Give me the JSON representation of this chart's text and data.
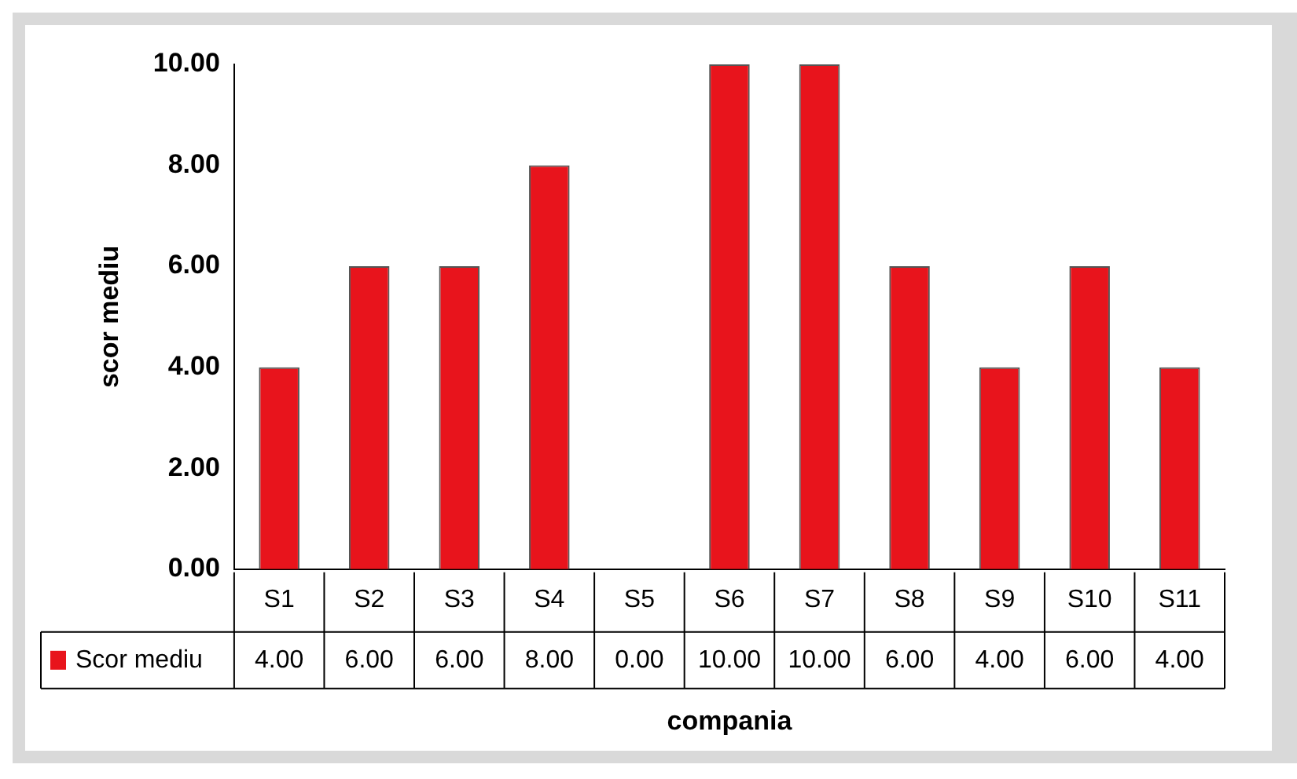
{
  "chart_data": {
    "type": "bar",
    "ylabel": "scor mediu",
    "xlabel": "compania",
    "categories": [
      "S1",
      "S2",
      "S3",
      "S4",
      "S5",
      "S6",
      "S7",
      "S8",
      "S9",
      "S10",
      "S11"
    ],
    "series": [
      {
        "name": "Scor mediu",
        "color": "#e8141c",
        "values": [
          4,
          6,
          6,
          8,
          0,
          10,
          10,
          6,
          4,
          6,
          4
        ],
        "value_labels": [
          "4.00",
          "6.00",
          "6.00",
          "8.00",
          "0.00",
          "10.00",
          "10.00",
          "6.00",
          "4.00",
          "6.00",
          "4.00"
        ]
      }
    ],
    "ylim": [
      0,
      10
    ],
    "yticks": [
      {
        "value": 0,
        "label": "0.00"
      },
      {
        "value": 2,
        "label": "2.00"
      },
      {
        "value": 4,
        "label": "4.00"
      },
      {
        "value": 6,
        "label": "6.00"
      },
      {
        "value": 8,
        "label": "8.00"
      },
      {
        "value": 10,
        "label": "10.00"
      }
    ],
    "grid": false,
    "legend": "bottom left"
  }
}
